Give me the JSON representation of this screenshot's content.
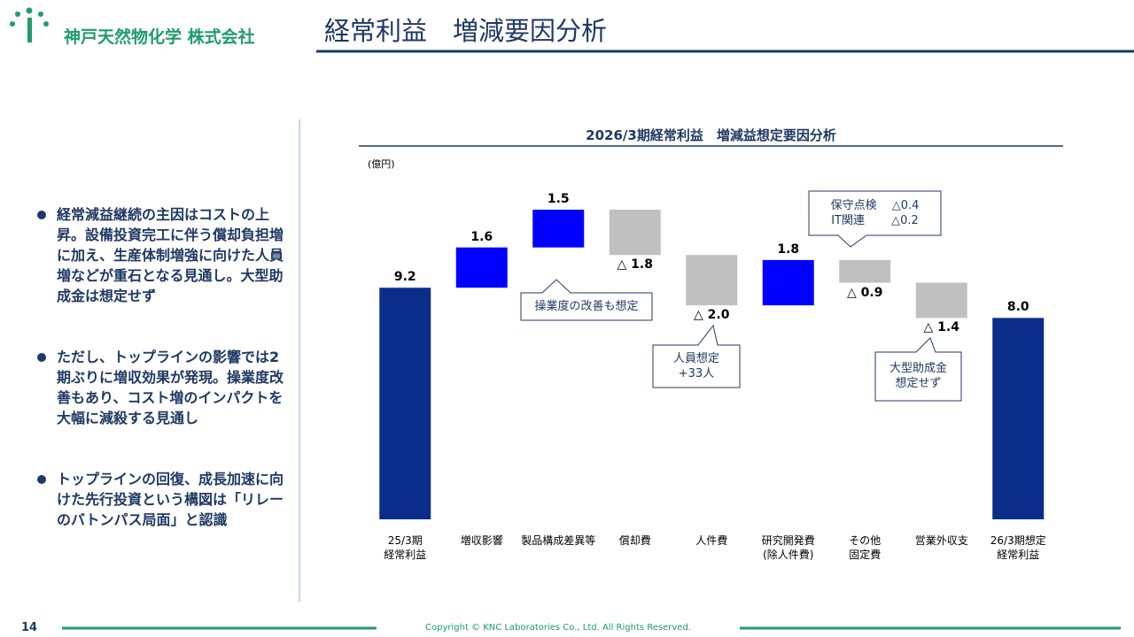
{
  "header": {
    "company": "神戸天然物化学 株式会社",
    "title": "経常利益　増減要因分析"
  },
  "bullets": [
    "経常減益継続の主因はコストの上昇。設備投資完工に伴う償却負担増に加え、生産体制増強に向けた人員増などが重石となる見通し。大型助成金は想定せず",
    "ただし、トップラインの影響では2期ぶりに増収効果が発現。操業度改善もあり、コスト増のインパクトを大幅に減殺する見通し",
    "トップラインの回復、成長加速に向けた先行投資という構図は「リレーのバトンパス局面」と認識"
  ],
  "chart_data": {
    "type": "waterfall",
    "title": "2026/3期経常利益　増減益想定要因分析",
    "unit": "(億円)",
    "categories": [
      "25/3期\n経常利益",
      "増収影響",
      "製品構成差異等",
      "償却費",
      "人件費",
      "研究開発費\n(除人件費)",
      "その他\n固定費",
      "営業外収支",
      "26/3期想定\n経常利益"
    ],
    "values": [
      9.2,
      1.6,
      1.5,
      -1.8,
      -2.0,
      1.8,
      -0.9,
      -1.4,
      8.0
    ],
    "value_labels": [
      "9.2",
      "1.6",
      "1.5",
      "△ 1.8",
      "△ 2.0",
      "1.8",
      "△ 0.9",
      "△ 1.4",
      "8.0"
    ],
    "colors": [
      "#0b2d8a",
      "#0000ff",
      "#0000ff",
      "#c0c0c0",
      "#c0c0c0",
      "#0000ff",
      "#c0c0c0",
      "#c0c0c0",
      "#0b2d8a"
    ],
    "annotations": [
      "操業度の改善も想定",
      "人員想定\n+33人",
      "保守点検　 △0.4\nIT関連　　 △0.2",
      "大型助成金\n想定せず"
    ]
  },
  "footer": {
    "page": "14",
    "copyright": "Copyright © KNC Laboratories Co., Ltd. All Rights Reserved."
  }
}
